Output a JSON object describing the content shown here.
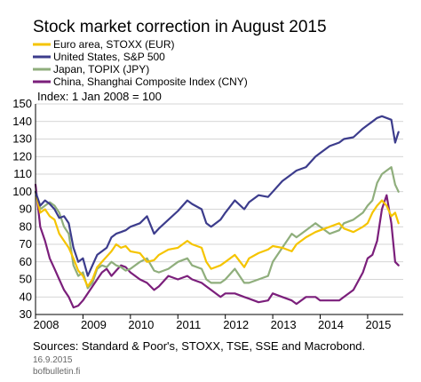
{
  "chart_data": {
    "type": "line",
    "title": "Stock market correction in August 2015",
    "subtitle": "Index: 1 Jan 2008 = 100",
    "ylim": [
      30,
      150
    ],
    "yticks": [
      30,
      40,
      50,
      60,
      70,
      80,
      90,
      100,
      110,
      120,
      130,
      140,
      150
    ],
    "xlim": [
      2008.0,
      2015.75
    ],
    "xticks": [
      2008,
      2009,
      2010,
      2011,
      2012,
      2013,
      2014,
      2015
    ],
    "xtick_labels": [
      "2008",
      "2009",
      "2010",
      "2011",
      "2012",
      "2013",
      "2014",
      "2015"
    ],
    "grid": true,
    "legend_position": "top-left",
    "source": "Sources: Standard & Poor's, STOXX, TSE, SSE and Macrobond.",
    "date": "16.9.2015",
    "website": "bofbulletin.fi",
    "series": [
      {
        "name": "Euro area, STOXX (EUR)",
        "color": "#f5c400",
        "x": [
          2008.0,
          2008.1,
          2008.2,
          2008.3,
          2008.4,
          2008.5,
          2008.6,
          2008.7,
          2008.8,
          2008.9,
          2009.0,
          2009.1,
          2009.2,
          2009.3,
          2009.4,
          2009.5,
          2009.6,
          2009.7,
          2009.8,
          2009.9,
          2010.0,
          2010.2,
          2010.35,
          2010.5,
          2010.6,
          2010.8,
          2011.0,
          2011.2,
          2011.3,
          2011.5,
          2011.6,
          2011.7,
          2011.9,
          2012.0,
          2012.2,
          2012.4,
          2012.5,
          2012.7,
          2012.9,
          2013.0,
          2013.2,
          2013.4,
          2013.5,
          2013.7,
          2013.9,
          2014.0,
          2014.2,
          2014.4,
          2014.5,
          2014.7,
          2014.9,
          2015.0,
          2015.1,
          2015.2,
          2015.3,
          2015.4,
          2015.5,
          2015.58,
          2015.65
        ],
        "values": [
          100,
          88,
          90,
          86,
          84,
          76,
          72,
          68,
          62,
          55,
          52,
          46,
          50,
          57,
          60,
          63,
          66,
          70,
          68,
          69,
          66,
          65,
          60,
          61,
          64,
          67,
          68,
          72,
          70,
          68,
          60,
          56,
          58,
          60,
          64,
          57,
          62,
          65,
          67,
          69,
          68,
          66,
          70,
          74,
          77,
          78,
          80,
          82,
          79,
          77,
          80,
          82,
          88,
          92,
          95,
          92,
          86,
          88,
          82
        ]
      },
      {
        "name": "United States, S&P 500",
        "color": "#3c3c8c",
        "x": [
          2008.0,
          2008.1,
          2008.2,
          2008.3,
          2008.4,
          2008.5,
          2008.6,
          2008.7,
          2008.8,
          2008.9,
          2009.0,
          2009.1,
          2009.2,
          2009.3,
          2009.4,
          2009.5,
          2009.6,
          2009.7,
          2009.8,
          2009.9,
          2010.0,
          2010.2,
          2010.35,
          2010.5,
          2010.6,
          2010.8,
          2011.0,
          2011.2,
          2011.3,
          2011.5,
          2011.6,
          2011.7,
          2011.9,
          2012.0,
          2012.2,
          2012.4,
          2012.5,
          2012.7,
          2012.9,
          2013.0,
          2013.2,
          2013.4,
          2013.5,
          2013.7,
          2013.9,
          2014.0,
          2014.2,
          2014.4,
          2014.5,
          2014.7,
          2014.9,
          2015.0,
          2015.1,
          2015.2,
          2015.3,
          2015.4,
          2015.5,
          2015.58,
          2015.65
        ],
        "values": [
          100,
          92,
          95,
          93,
          90,
          85,
          86,
          82,
          68,
          60,
          62,
          52,
          58,
          64,
          66,
          68,
          74,
          76,
          77,
          78,
          80,
          82,
          86,
          76,
          79,
          84,
          89,
          95,
          93,
          90,
          82,
          80,
          84,
          88,
          95,
          90,
          94,
          98,
          97,
          100,
          106,
          110,
          112,
          114,
          120,
          122,
          126,
          128,
          130,
          131,
          136,
          138,
          140,
          142,
          143,
          142,
          141,
          128,
          134
        ]
      },
      {
        "name": "Japan, TOPIX (JPY)",
        "color": "#8fae7c",
        "x": [
          2008.0,
          2008.1,
          2008.2,
          2008.3,
          2008.4,
          2008.5,
          2008.6,
          2008.7,
          2008.8,
          2008.9,
          2009.0,
          2009.1,
          2009.2,
          2009.3,
          2009.4,
          2009.5,
          2009.6,
          2009.7,
          2009.8,
          2009.9,
          2010.0,
          2010.2,
          2010.35,
          2010.5,
          2010.6,
          2010.8,
          2011.0,
          2011.2,
          2011.3,
          2011.5,
          2011.6,
          2011.7,
          2011.9,
          2012.0,
          2012.2,
          2012.4,
          2012.5,
          2012.7,
          2012.9,
          2013.0,
          2013.2,
          2013.4,
          2013.5,
          2013.7,
          2013.9,
          2014.0,
          2014.2,
          2014.4,
          2014.5,
          2014.7,
          2014.9,
          2015.0,
          2015.1,
          2015.2,
          2015.3,
          2015.4,
          2015.5,
          2015.58,
          2015.65
        ],
        "values": [
          100,
          90,
          92,
          94,
          92,
          88,
          80,
          76,
          58,
          52,
          54,
          45,
          48,
          56,
          58,
          57,
          60,
          58,
          57,
          55,
          56,
          60,
          62,
          55,
          54,
          56,
          60,
          62,
          58,
          56,
          50,
          48,
          48,
          50,
          56,
          48,
          48,
          50,
          52,
          60,
          68,
          76,
          74,
          78,
          82,
          80,
          76,
          78,
          82,
          84,
          88,
          92,
          95,
          105,
          110,
          112,
          114,
          104,
          100
        ]
      },
      {
        "name": "China, Shanghai Composite Index (CNY)",
        "color": "#7b1f7b",
        "x": [
          2008.0,
          2008.1,
          2008.2,
          2008.3,
          2008.4,
          2008.5,
          2008.6,
          2008.7,
          2008.8,
          2008.9,
          2009.0,
          2009.1,
          2009.2,
          2009.3,
          2009.4,
          2009.5,
          2009.6,
          2009.7,
          2009.8,
          2009.9,
          2010.0,
          2010.2,
          2010.35,
          2010.5,
          2010.6,
          2010.8,
          2011.0,
          2011.2,
          2011.3,
          2011.5,
          2011.6,
          2011.7,
          2011.9,
          2012.0,
          2012.2,
          2012.4,
          2012.5,
          2012.7,
          2012.9,
          2013.0,
          2013.2,
          2013.4,
          2013.5,
          2013.7,
          2013.9,
          2014.0,
          2014.2,
          2014.4,
          2014.5,
          2014.7,
          2014.9,
          2015.0,
          2015.1,
          2015.2,
          2015.3,
          2015.4,
          2015.5,
          2015.58,
          2015.65
        ],
        "values": [
          104,
          80,
          72,
          62,
          56,
          50,
          44,
          40,
          34,
          35,
          38,
          42,
          46,
          50,
          54,
          56,
          52,
          55,
          58,
          57,
          54,
          50,
          48,
          44,
          46,
          52,
          50,
          52,
          50,
          48,
          46,
          44,
          40,
          42,
          42,
          40,
          39,
          37,
          38,
          42,
          40,
          38,
          36,
          40,
          40,
          38,
          38,
          38,
          40,
          44,
          54,
          62,
          64,
          72,
          90,
          98,
          82,
          60,
          58
        ]
      }
    ]
  }
}
